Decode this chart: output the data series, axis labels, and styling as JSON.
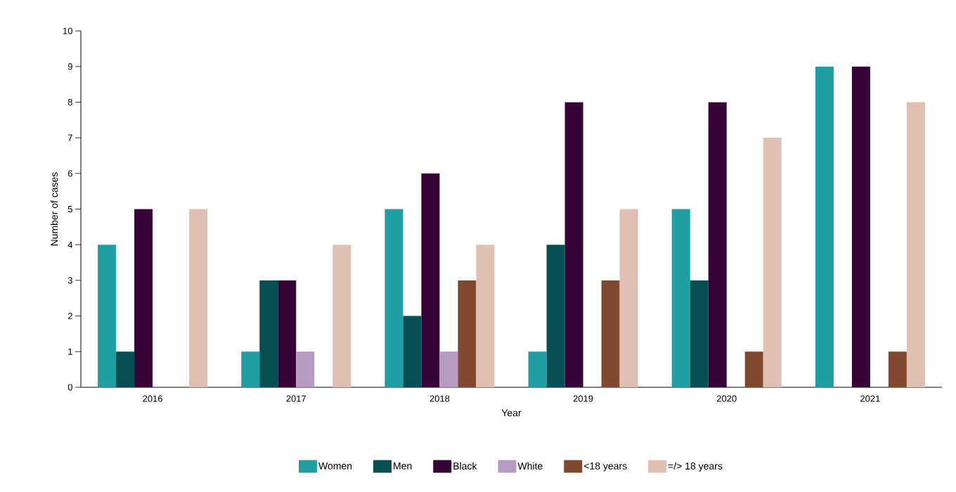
{
  "chart_data": {
    "type": "bar",
    "xlabel": "Year",
    "ylabel": "Number of cases",
    "categories": [
      "2016",
      "2017",
      "2018",
      "2019",
      "2020",
      "2021"
    ],
    "series": [
      {
        "name": "Women",
        "color": "#1f9ea3",
        "values": [
          4,
          1,
          5,
          1,
          5,
          9
        ]
      },
      {
        "name": "Men",
        "color": "#074f53",
        "values": [
          1,
          3,
          2,
          4,
          3,
          0
        ]
      },
      {
        "name": "Black",
        "color": "#360439",
        "values": [
          5,
          3,
          6,
          8,
          8,
          9
        ]
      },
      {
        "name": "White",
        "color": "#b59bbf",
        "values": [
          0,
          1,
          1,
          0,
          0,
          0
        ]
      },
      {
        "name": "<18 years",
        "color": "#7f4930",
        "values": [
          0,
          0,
          3,
          3,
          1,
          1
        ]
      },
      {
        "name": "=/> 18 years",
        "color": "#dfc0b2",
        "values": [
          5,
          4,
          4,
          5,
          7,
          8
        ]
      }
    ],
    "ylim": [
      0,
      10
    ],
    "yticks": [
      0,
      1,
      2,
      3,
      4,
      5,
      6,
      7,
      8,
      9,
      10
    ],
    "legend": "bottom"
  }
}
